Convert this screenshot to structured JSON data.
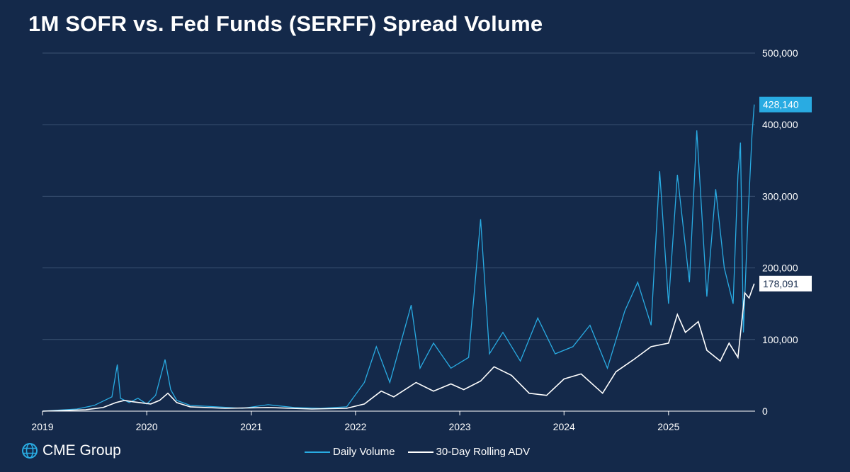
{
  "title": "1M SOFR vs. Fed Funds (SERFF) Spread Volume",
  "brand": {
    "logo_text": "CME Group",
    "icon": "globe-icon"
  },
  "legend": [
    {
      "label": "Daily Volume",
      "color": "#29abe2"
    },
    {
      "label": "30-Day Rolling ADV",
      "color": "#ffffff"
    }
  ],
  "callouts": {
    "daily_last": "428,140",
    "adv_last": "178,091"
  },
  "chart_data": {
    "type": "line",
    "x_ticks": [
      "2019",
      "2020",
      "2021",
      "2022",
      "2023",
      "2024",
      "2025"
    ],
    "y_ticks": [
      "0",
      "100,000",
      "200,000",
      "300,000",
      "400,000",
      "500,000"
    ],
    "ylim": [
      0,
      500000
    ],
    "xlim": [
      "2019-01-01",
      "2025-10-31"
    ],
    "grid": true,
    "y_axis_side": "right",
    "legend_position": "bottom-center",
    "series": [
      {
        "name": "Daily Volume",
        "color": "#29abe2",
        "points": [
          [
            "2019-01-01",
            0
          ],
          [
            "2019-03-01",
            1500
          ],
          [
            "2019-05-01",
            3000
          ],
          [
            "2019-07-01",
            8000
          ],
          [
            "2019-09-01",
            20000
          ],
          [
            "2019-09-20",
            65000
          ],
          [
            "2019-10-01",
            18000
          ],
          [
            "2019-11-01",
            12000
          ],
          [
            "2019-12-01",
            18000
          ],
          [
            "2020-01-01",
            10000
          ],
          [
            "2020-02-01",
            22000
          ],
          [
            "2020-03-05",
            72000
          ],
          [
            "2020-03-25",
            30000
          ],
          [
            "2020-04-15",
            15000
          ],
          [
            "2020-06-01",
            8000
          ],
          [
            "2020-09-01",
            6000
          ],
          [
            "2020-12-01",
            4000
          ],
          [
            "2021-03-01",
            9000
          ],
          [
            "2021-06-01",
            5000
          ],
          [
            "2021-09-01",
            4000
          ],
          [
            "2021-12-01",
            6000
          ],
          [
            "2022-02-01",
            40000
          ],
          [
            "2022-03-15",
            90000
          ],
          [
            "2022-05-01",
            40000
          ],
          [
            "2022-07-15",
            148000
          ],
          [
            "2022-08-15",
            60000
          ],
          [
            "2022-10-01",
            95000
          ],
          [
            "2022-12-01",
            60000
          ],
          [
            "2023-02-01",
            75000
          ],
          [
            "2023-03-15",
            268000
          ],
          [
            "2023-04-15",
            80000
          ],
          [
            "2023-06-01",
            110000
          ],
          [
            "2023-08-01",
            70000
          ],
          [
            "2023-10-01",
            130000
          ],
          [
            "2023-12-01",
            80000
          ],
          [
            "2024-02-01",
            90000
          ],
          [
            "2024-04-01",
            120000
          ],
          [
            "2024-06-01",
            60000
          ],
          [
            "2024-08-01",
            140000
          ],
          [
            "2024-09-15",
            180000
          ],
          [
            "2024-11-01",
            120000
          ],
          [
            "2024-12-01",
            335000
          ],
          [
            "2025-01-01",
            150000
          ],
          [
            "2025-02-01",
            330000
          ],
          [
            "2025-03-15",
            180000
          ],
          [
            "2025-04-10",
            392000
          ],
          [
            "2025-05-15",
            160000
          ],
          [
            "2025-06-15",
            310000
          ],
          [
            "2025-07-15",
            200000
          ],
          [
            "2025-08-15",
            150000
          ],
          [
            "2025-09-01",
            330000
          ],
          [
            "2025-09-10",
            375000
          ],
          [
            "2025-09-20",
            110000
          ],
          [
            "2025-10-05",
            260000
          ],
          [
            "2025-10-20",
            385000
          ],
          [
            "2025-10-28",
            428140
          ]
        ]
      },
      {
        "name": "30-Day Rolling ADV",
        "color": "#ffffff",
        "points": [
          [
            "2019-01-01",
            0
          ],
          [
            "2019-06-01",
            2000
          ],
          [
            "2019-08-01",
            5000
          ],
          [
            "2019-09-15",
            12000
          ],
          [
            "2019-10-15",
            15000
          ],
          [
            "2019-11-15",
            13000
          ],
          [
            "2020-01-15",
            10000
          ],
          [
            "2020-02-15",
            15000
          ],
          [
            "2020-03-15",
            25000
          ],
          [
            "2020-04-15",
            12000
          ],
          [
            "2020-06-01",
            6000
          ],
          [
            "2020-10-01",
            4000
          ],
          [
            "2021-03-01",
            5000
          ],
          [
            "2021-08-01",
            3000
          ],
          [
            "2021-12-01",
            4000
          ],
          [
            "2022-02-01",
            10000
          ],
          [
            "2022-04-01",
            28000
          ],
          [
            "2022-05-15",
            20000
          ],
          [
            "2022-08-01",
            40000
          ],
          [
            "2022-10-01",
            28000
          ],
          [
            "2022-12-01",
            38000
          ],
          [
            "2023-01-15",
            30000
          ],
          [
            "2023-03-15",
            42000
          ],
          [
            "2023-05-01",
            62000
          ],
          [
            "2023-07-01",
            50000
          ],
          [
            "2023-09-01",
            25000
          ],
          [
            "2023-11-01",
            22000
          ],
          [
            "2024-01-01",
            45000
          ],
          [
            "2024-03-01",
            52000
          ],
          [
            "2024-05-15",
            25000
          ],
          [
            "2024-07-01",
            55000
          ],
          [
            "2024-09-01",
            72000
          ],
          [
            "2024-11-01",
            90000
          ],
          [
            "2025-01-01",
            95000
          ],
          [
            "2025-02-01",
            135000
          ],
          [
            "2025-03-01",
            110000
          ],
          [
            "2025-04-15",
            125000
          ],
          [
            "2025-05-15",
            85000
          ],
          [
            "2025-07-01",
            70000
          ],
          [
            "2025-08-01",
            95000
          ],
          [
            "2025-09-01",
            75000
          ],
          [
            "2025-09-25",
            165000
          ],
          [
            "2025-10-10",
            158000
          ],
          [
            "2025-10-28",
            178091
          ]
        ]
      }
    ]
  }
}
